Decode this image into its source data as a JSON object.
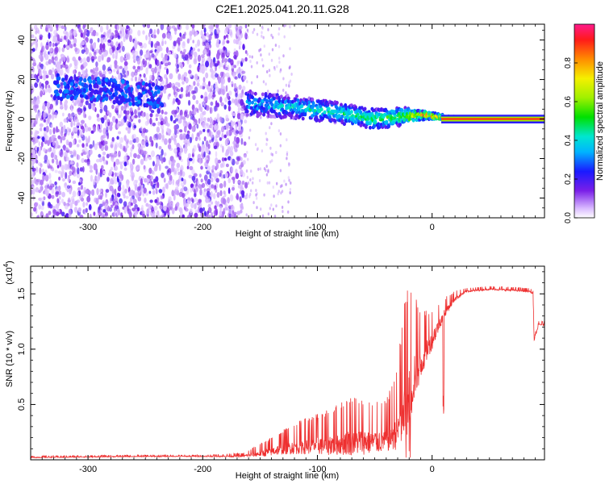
{
  "title": "C2E1.2025.041.20.11.G28",
  "chart_data": [
    {
      "type": "heatmap",
      "xlabel": "Height of straight line (km)",
      "ylabel": "Frequency (Hz)",
      "xlim": [
        -350,
        98
      ],
      "ylim": [
        -50,
        48
      ],
      "xticks": [
        -300,
        -200,
        -100,
        0
      ],
      "yticks": [
        -40,
        -20,
        0,
        20,
        40
      ],
      "colorbar": {
        "label": "Normalized spectral amplitude",
        "range": [
          0.0,
          1.0
        ],
        "ticks": [
          "0.0",
          "0.2",
          "0.4",
          "0.6",
          "0.8"
        ],
        "colormap": "rainbow (white-violet-blue-cyan-green-yellow-red-magenta)"
      },
      "features": {
        "noise_region_x": [
          -350,
          -162
        ],
        "signal_band_center_hz": [
          {
            "x": -160,
            "f": 8
          },
          {
            "x": -120,
            "f": 6
          },
          {
            "x": -80,
            "f": 3
          },
          {
            "x": -50,
            "f": 0
          },
          {
            "x": -30,
            "f": 1
          },
          {
            "x": -10,
            "f": 2
          },
          {
            "x": 0,
            "f": 1.5
          },
          {
            "x": 20,
            "f": 0
          },
          {
            "x": 98,
            "f": 0
          }
        ]
      }
    },
    {
      "type": "line",
      "xlabel": "Height of straight line (km)",
      "ylabel": "SNR (10 * v/v)",
      "multiplier": "(x10",
      "multiplier_exp": "4",
      "xlim": [
        -350,
        98
      ],
      "ylim": [
        0,
        1.75
      ],
      "xticks": [
        -300,
        -200,
        -100,
        0
      ],
      "yticks": [
        "0.5",
        "1.0",
        "1.5"
      ],
      "color": "#ee3030",
      "envelope": {
        "x": [
          -350,
          -250,
          -200,
          -165,
          -145,
          -130,
          -110,
          -90,
          -70,
          -50,
          -40,
          -30,
          -25,
          -20,
          -15,
          -10,
          -5,
          0,
          10,
          20,
          30,
          50,
          70,
          85,
          88,
          89,
          93,
          98
        ],
        "base": [
          0.02,
          0.03,
          0.03,
          0.03,
          0.05,
          0.08,
          0.1,
          0.1,
          0.12,
          0.12,
          0.14,
          0.2,
          0.3,
          0.45,
          0.7,
          0.8,
          0.95,
          1.05,
          1.3,
          1.45,
          1.52,
          1.54,
          1.53,
          1.52,
          1.5,
          1.08,
          1.22,
          1.22
        ],
        "noise": [
          0.01,
          0.01,
          0.01,
          0.02,
          0.08,
          0.12,
          0.18,
          0.22,
          0.3,
          0.25,
          0.25,
          0.4,
          0.7,
          0.75,
          0.5,
          0.35,
          0.25,
          0.2,
          0.1,
          0.05,
          0.02,
          0.02,
          0.02,
          0.02,
          0.02,
          0.02,
          0.02,
          0.02
        ]
      }
    }
  ]
}
